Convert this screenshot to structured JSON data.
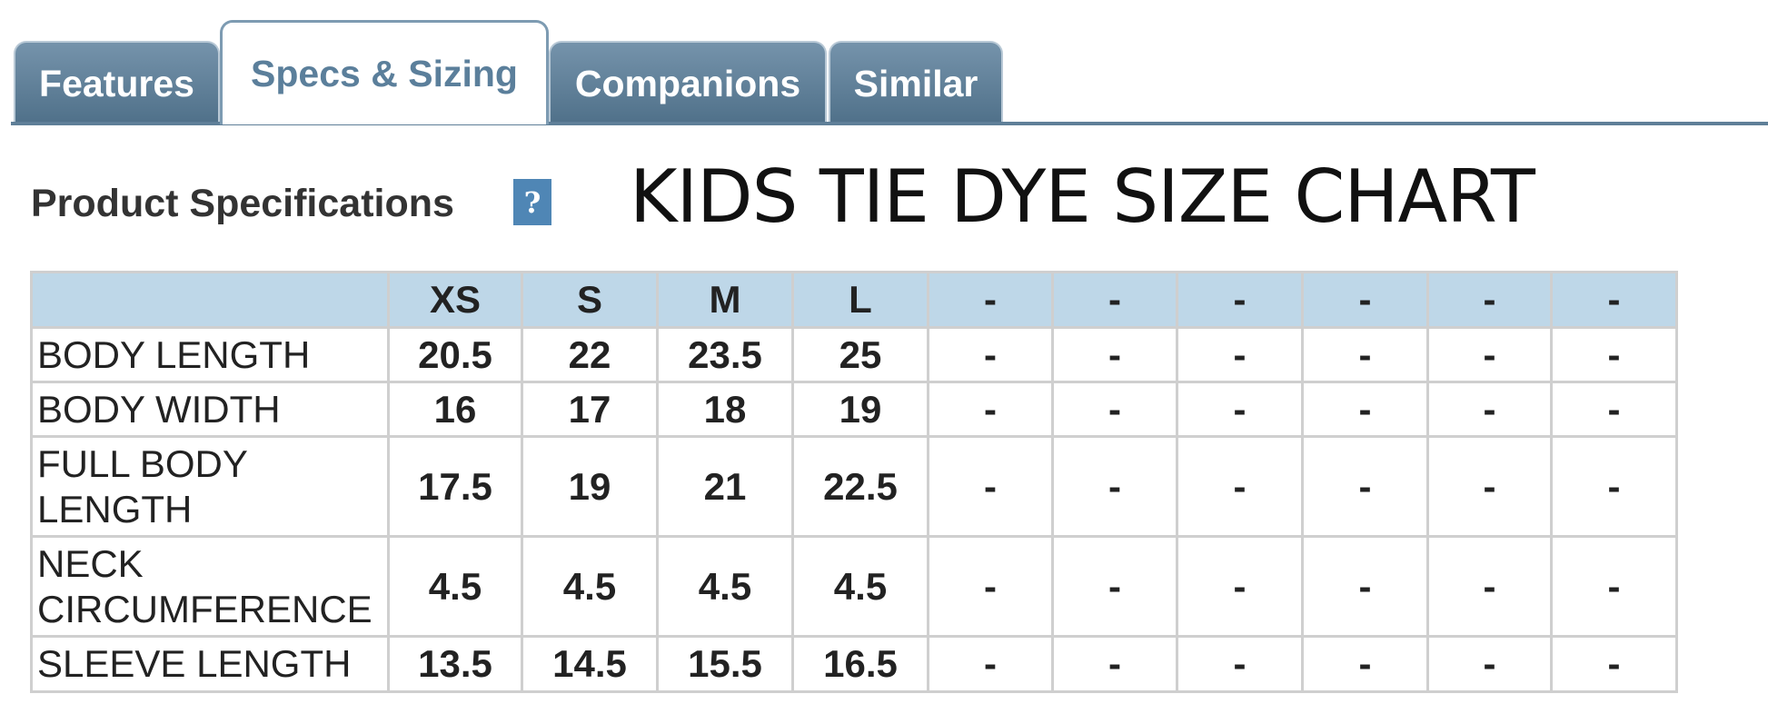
{
  "tabs": [
    "Features",
    "Specs & Sizing",
    "Companions",
    "Similar"
  ],
  "active_tab": 1,
  "section_title": "Product Specifications",
  "help_icon": "?",
  "heading": "KIDS TIE DYE SIZE CHART",
  "table": {
    "header": [
      "XS",
      "S",
      "M",
      "L",
      "-",
      "-",
      "-",
      "-",
      "-",
      "-"
    ],
    "rows": [
      {
        "label": "BODY LENGTH",
        "values": [
          20.5,
          22,
          23.5,
          25,
          "-",
          "-",
          "-",
          "-",
          "-",
          "-"
        ]
      },
      {
        "label": "BODY WIDTH",
        "values": [
          16,
          17,
          18,
          19,
          "-",
          "-",
          "-",
          "-",
          "-",
          "-"
        ]
      },
      {
        "label": "FULL BODY LENGTH",
        "values": [
          17.5,
          19,
          21,
          22.5,
          "-",
          "-",
          "-",
          "-",
          "-",
          "-"
        ]
      },
      {
        "label": "NECK CIRCUMFERENCE",
        "values": [
          4.5,
          4.5,
          4.5,
          4.5,
          "-",
          "-",
          "-",
          "-",
          "-",
          "-"
        ]
      },
      {
        "label": "SLEEVE LENGTH",
        "values": [
          13.5,
          14.5,
          15.5,
          16.5,
          "-",
          "-",
          "-",
          "-",
          "-",
          "-"
        ]
      }
    ]
  }
}
